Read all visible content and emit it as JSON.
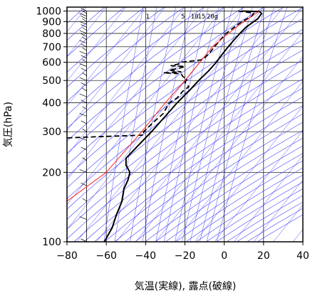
{
  "chart_data": {
    "type": "line",
    "subtype": "skew-t / emagram sounding",
    "xlabel": "気温(実線), 露点(破線)",
    "ylabel": "気圧(hPa)",
    "x_unit": "°C",
    "y_scale": "log",
    "xlim": [
      -80,
      40
    ],
    "ylim": [
      1040,
      100
    ],
    "x_ticks": [
      -80,
      -60,
      -40,
      -20,
      0,
      20,
      40
    ],
    "x_tick_labels": [
      "−80",
      "−60",
      "−40",
      "−20",
      "0",
      "20",
      "40"
    ],
    "y_ticks": [
      100,
      200,
      300,
      400,
      500,
      600,
      700,
      800,
      900,
      1000
    ],
    "y_tick_labels": [
      "100",
      "200",
      "300",
      "400",
      "500",
      "600",
      "700",
      "800",
      "900",
      "1000"
    ],
    "mixing_ratio_labels": [
      "1",
      "5",
      "10",
      "15",
      "20g"
    ],
    "colors": {
      "frame": "#000000",
      "grid": "#000000",
      "adiabats": "#4040ff",
      "parcel": "#ff2020",
      "temperature": "#000000",
      "dewpoint": "#000000",
      "wind_barbs": "#000000"
    },
    "series": [
      {
        "key": "temperature",
        "style": "solid",
        "points": [
          [
            1000,
            9
          ],
          [
            995,
            18
          ],
          [
            975,
            19
          ],
          [
            950,
            18
          ],
          [
            925,
            17
          ],
          [
            900,
            15
          ],
          [
            850,
            11
          ],
          [
            800,
            8
          ],
          [
            750,
            5
          ],
          [
            700,
            2
          ],
          [
            650,
            -1
          ],
          [
            600,
            -4
          ],
          [
            550,
            -8
          ],
          [
            500,
            -13
          ],
          [
            450,
            -18
          ],
          [
            400,
            -24
          ],
          [
            350,
            -30
          ],
          [
            300,
            -37
          ],
          [
            250,
            -46
          ],
          [
            230,
            -50
          ],
          [
            215,
            -50
          ],
          [
            200,
            -48
          ],
          [
            185,
            -49
          ],
          [
            170,
            -51
          ],
          [
            150,
            -52
          ],
          [
            130,
            -55
          ],
          [
            115,
            -57
          ],
          [
            100,
            -61
          ]
        ]
      },
      {
        "key": "dewpoint",
        "style": "dashed",
        "points": [
          [
            1000,
            7
          ],
          [
            980,
            15
          ],
          [
            950,
            14
          ],
          [
            900,
            9
          ],
          [
            850,
            5
          ],
          [
            800,
            1
          ],
          [
            750,
            -2
          ],
          [
            700,
            -5
          ],
          [
            650,
            -8
          ],
          [
            615,
            -11
          ],
          [
            600,
            -22
          ],
          [
            590,
            -23
          ],
          [
            580,
            -27
          ],
          [
            575,
            -20
          ],
          [
            565,
            -23
          ],
          [
            555,
            -28
          ],
          [
            545,
            -22
          ],
          [
            540,
            -31
          ],
          [
            535,
            -22
          ],
          [
            520,
            -21
          ],
          [
            505,
            -19
          ],
          [
            490,
            -20
          ],
          [
            470,
            -18
          ],
          [
            450,
            -21
          ],
          [
            420,
            -24
          ],
          [
            400,
            -28
          ],
          [
            360,
            -31
          ],
          [
            330,
            -36
          ],
          [
            300,
            -41
          ],
          [
            290,
            -41
          ],
          [
            285,
            -66
          ],
          [
            282,
            -80
          ]
        ]
      },
      {
        "key": "parcel",
        "style": "solid",
        "points": [
          [
            1000,
            18
          ],
          [
            850,
            6
          ],
          [
            700,
            -6
          ],
          [
            500,
            -20
          ],
          [
            400,
            -30
          ],
          [
            300,
            -42
          ],
          [
            200,
            -60
          ],
          [
            150,
            -80
          ]
        ]
      }
    ],
    "mixing_ratio_lines_gkg": [
      1,
      5,
      10,
      15,
      20
    ],
    "wind_barbs": "staff at x ≈ −70 °C from 1000 to 100 hPa"
  }
}
